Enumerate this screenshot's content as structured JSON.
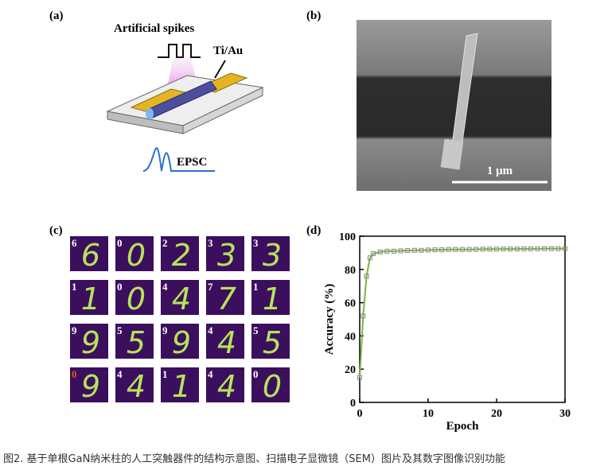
{
  "panels": {
    "a": {
      "label": "(a)",
      "spikes": "Artificial spikes",
      "electrode": "Ti/Au",
      "response": "EPSC"
    },
    "b": {
      "label": "(b)",
      "scale": "1 μm"
    },
    "c": {
      "label": "(c)",
      "digits": [
        {
          "label": "6",
          "image": "6"
        },
        {
          "label": "0",
          "image": "0"
        },
        {
          "label": "2",
          "image": "2"
        },
        {
          "label": "3",
          "image": "3"
        },
        {
          "label": "3",
          "image": "3"
        },
        {
          "label": "1",
          "image": "1"
        },
        {
          "label": "0",
          "image": "0"
        },
        {
          "label": "4",
          "image": "4"
        },
        {
          "label": "7",
          "image": "7"
        },
        {
          "label": "1",
          "image": "1"
        },
        {
          "label": "9",
          "image": "9"
        },
        {
          "label": "5",
          "image": "5"
        },
        {
          "label": "9",
          "image": "9"
        },
        {
          "label": "4",
          "image": "4"
        },
        {
          "label": "5",
          "image": "5"
        },
        {
          "label": "0",
          "image": "9",
          "label_color": "#e0561b"
        },
        {
          "label": "4",
          "image": "4"
        },
        {
          "label": "1",
          "image": "1"
        },
        {
          "label": "4",
          "image": "4"
        },
        {
          "label": "0",
          "image": "0"
        }
      ]
    },
    "d": {
      "label": "(d)"
    }
  },
  "chart_data": {
    "type": "line",
    "xlabel": "Epoch",
    "ylabel": "Accuracy (%)",
    "x": [
      0,
      0.5,
      1,
      1.5,
      2,
      3,
      4,
      5,
      6,
      7,
      8,
      9,
      10,
      11,
      12,
      13,
      14,
      15,
      16,
      17,
      18,
      19,
      20,
      21,
      22,
      23,
      24,
      25,
      26,
      27,
      28,
      29,
      30
    ],
    "series": [
      {
        "color": "#7cb342",
        "values": [
          15,
          52,
          76,
          87,
          89.5,
          90.5,
          91,
          91,
          91.2,
          91.4,
          91.5,
          91.5,
          91.7,
          91.8,
          91.8,
          92,
          92,
          92,
          92,
          92.1,
          92.2,
          92.2,
          92.2,
          92.3,
          92.3,
          92.3,
          92.4,
          92.4,
          92.4,
          92.5,
          92.5,
          92.5,
          92.5
        ]
      }
    ],
    "xlim": [
      0,
      30
    ],
    "ylim": [
      0,
      100
    ],
    "xticks": [
      0,
      10,
      20,
      30
    ],
    "yticks": [
      0,
      20,
      40,
      60,
      80,
      100
    ]
  },
  "caption": "图2. 基于单根GaN纳米柱的人工突触器件的结构示意图、扫描电子显微镜（SEM）图片及其数字图像识别功能"
}
